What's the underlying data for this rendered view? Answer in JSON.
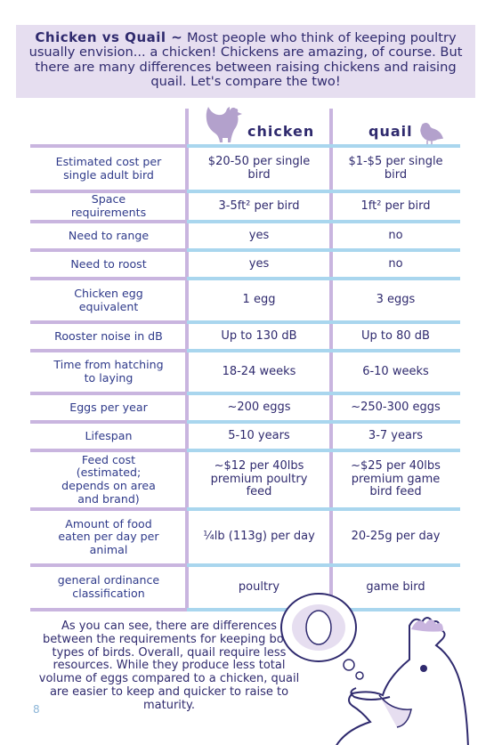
{
  "intro": {
    "lead": "Chicken vs Quail ~",
    "text": "Most people who think of keeping poultry usually envision... a chicken! Chickens are amazing, of course. But there are many differences between raising chickens and raising quail. Let's compare the two!"
  },
  "table": {
    "headers": {
      "chicken": "chicken",
      "quail": "quail"
    },
    "rows": [
      {
        "label": "Estimated cost per single adult bird",
        "chicken": "$20-50 per single bird",
        "quail": "$1-$5 per single bird"
      },
      {
        "label": "Space requirements",
        "chicken": "3-5ft² per bird",
        "quail": "1ft² per bird"
      },
      {
        "label": "Need to range",
        "chicken": "yes",
        "quail": "no"
      },
      {
        "label": "Need to roost",
        "chicken": "yes",
        "quail": "no"
      },
      {
        "label": "Chicken egg equivalent",
        "chicken": "1 egg",
        "quail": "3 eggs"
      },
      {
        "label": "Rooster noise in dB",
        "chicken": "Up to 130 dB",
        "quail": "Up to 80 dB"
      },
      {
        "label": "Time from hatching to laying",
        "chicken": "18-24 weeks",
        "quail": "6-10 weeks"
      },
      {
        "label": "Eggs per year",
        "chicken": "~200 eggs",
        "quail": "~250-300 eggs"
      },
      {
        "label": "Lifespan",
        "chicken": "5-10 years",
        "quail": "3-7 years"
      },
      {
        "label": "Feed cost (estimated; depends on area and brand)",
        "chicken": "~$12 per 40lbs premium poultry feed",
        "quail": "~$25 per 40lbs premium game bird feed"
      },
      {
        "label": "Amount of food eaten per day per animal",
        "chicken": "¼lb (113g) per day",
        "quail": "20-25g per day"
      },
      {
        "label": "general ordinance classification",
        "chicken": "poultry",
        "quail": "game bird"
      }
    ]
  },
  "outro": "As you can see, there are differences between the requirements for keeping both types of birds. Overall, quail require less resources. While they produce less total volume of eggs compared to a chicken, quail are easier to keep and quicker to raise to maturity.",
  "page_number": "8",
  "colors": {
    "navy": "#2f2a6e",
    "lavender": "#c9b5df",
    "lightblue": "#a9d6ee",
    "intro_bg": "#e6def0"
  },
  "icons": {
    "chicken_header": "chicken-silhouette-icon",
    "quail_header": "quail-silhouette-icon"
  }
}
